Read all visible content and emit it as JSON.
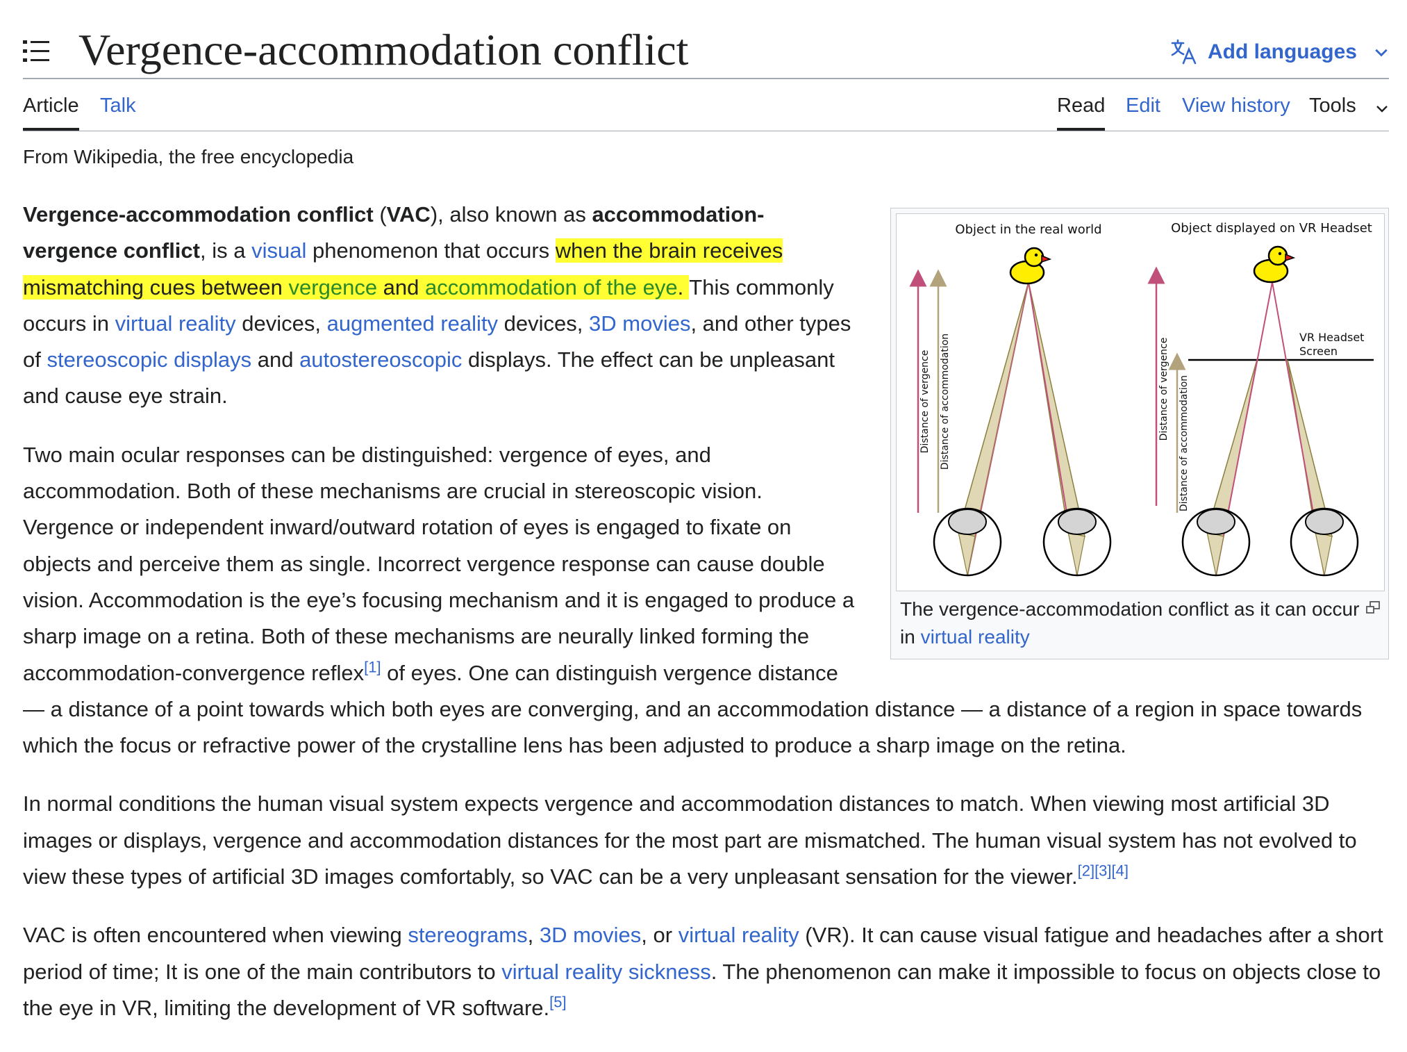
{
  "page": {
    "title": "Vergence-accommodation conflict",
    "add_languages": "Add languages"
  },
  "tabs": {
    "article": "Article",
    "talk": "Talk",
    "read": "Read",
    "edit": "Edit",
    "view_history": "View history",
    "tools": "Tools"
  },
  "tagline": "From Wikipedia, the free encyclopedia",
  "figure": {
    "label_left": "Object in the real world",
    "label_right": "Object displayed on VR Headset",
    "screen_label_1": "VR Headset",
    "screen_label_2": "Screen",
    "axis_vergence": "Distance of vergence",
    "axis_accommodation": "Distance of accommodation",
    "caption_text": "The vergence-accommodation conflict as it can occur in ",
    "caption_link": "virtual reality"
  },
  "p1": {
    "b1": "Vergence-accommodation conflict",
    "t1": " (",
    "b2": "VAC",
    "t2": "), also known as ",
    "b3": "accommodation-vergence conflict",
    "t3": ", is a ",
    "l_visual": "visual",
    "t4": " phenomenon that occurs ",
    "h1": "when the brain receives mismatching cues between ",
    "l_vergence": "vergence",
    "h2": " and ",
    "l_accommodation": "accommodation of the eye",
    "h3": ". ",
    "t5": "This commonly occurs in ",
    "l_vr": "virtual reality",
    "t6": " devices, ",
    "l_ar": "augmented reality",
    "t7": " devices, ",
    "l_3d": "3D movies",
    "t8": ", and other types of ",
    "l_stereo": "stereoscopic displays",
    "t9": " and ",
    "l_auto": "autostereoscopic",
    "t10": " displays. The effect can be unpleasant and cause eye strain."
  },
  "p2": {
    "t1": "Two main ocular responses can be distinguished: vergence of eyes, and accommodation. Both of these mechanisms are crucial in stereoscopic vision. Vergence or independent inward/outward rotation of eyes is engaged to fixate on objects and perceive them as single. Incorrect vergence response can cause double vision. Accommodation is the eye’s focusing mechanism and it is engaged to produce a sharp image on a retina. Both of these mechanisms are neurally linked forming the accommodation-convergence reflex",
    "ref1": "[1]",
    "t2": " of eyes. One can distinguish vergence distance — a distance of a point towards which both eyes are converging, and an accommodation distance — a distance of a region in space towards which the focus or refractive power of the crystalline lens has been adjusted to produce a sharp image on the retina."
  },
  "p3": {
    "t1": "In normal conditions the human visual system expects vergence and accommodation distances to match. When viewing most artificial 3D images or displays, vergence and accommodation distances for the most part are mismatched. The human visual system has not evolved to view these types of artificial 3D images comfortably, so VAC can be a very unpleasant sensation for the viewer.",
    "ref2": "[2]",
    "ref3": "[3]",
    "ref4": "[4]"
  },
  "p4": {
    "t1": "VAC is often encountered when viewing ",
    "l_stereograms": "stereograms",
    "t2": ", ",
    "l_3d": "3D movies",
    "t3": ", or ",
    "l_vr": "virtual reality",
    "t4": " (VR). It can cause visual fatigue and headaches after a short period of time; It is one of the main contributors to ",
    "l_vrs": "virtual reality sickness",
    "t5": ". The phenomenon can make it impossible to focus on objects close to the eye in VR, limiting the development of VR software.",
    "ref5": "[5]"
  },
  "colors": {
    "link": "#3366cc",
    "highlight": "#ffff33",
    "vergence_arrow": "#c0507a",
    "accommodation_arrow": "#b2a37c",
    "cone_fill": "#e0d7b4"
  }
}
